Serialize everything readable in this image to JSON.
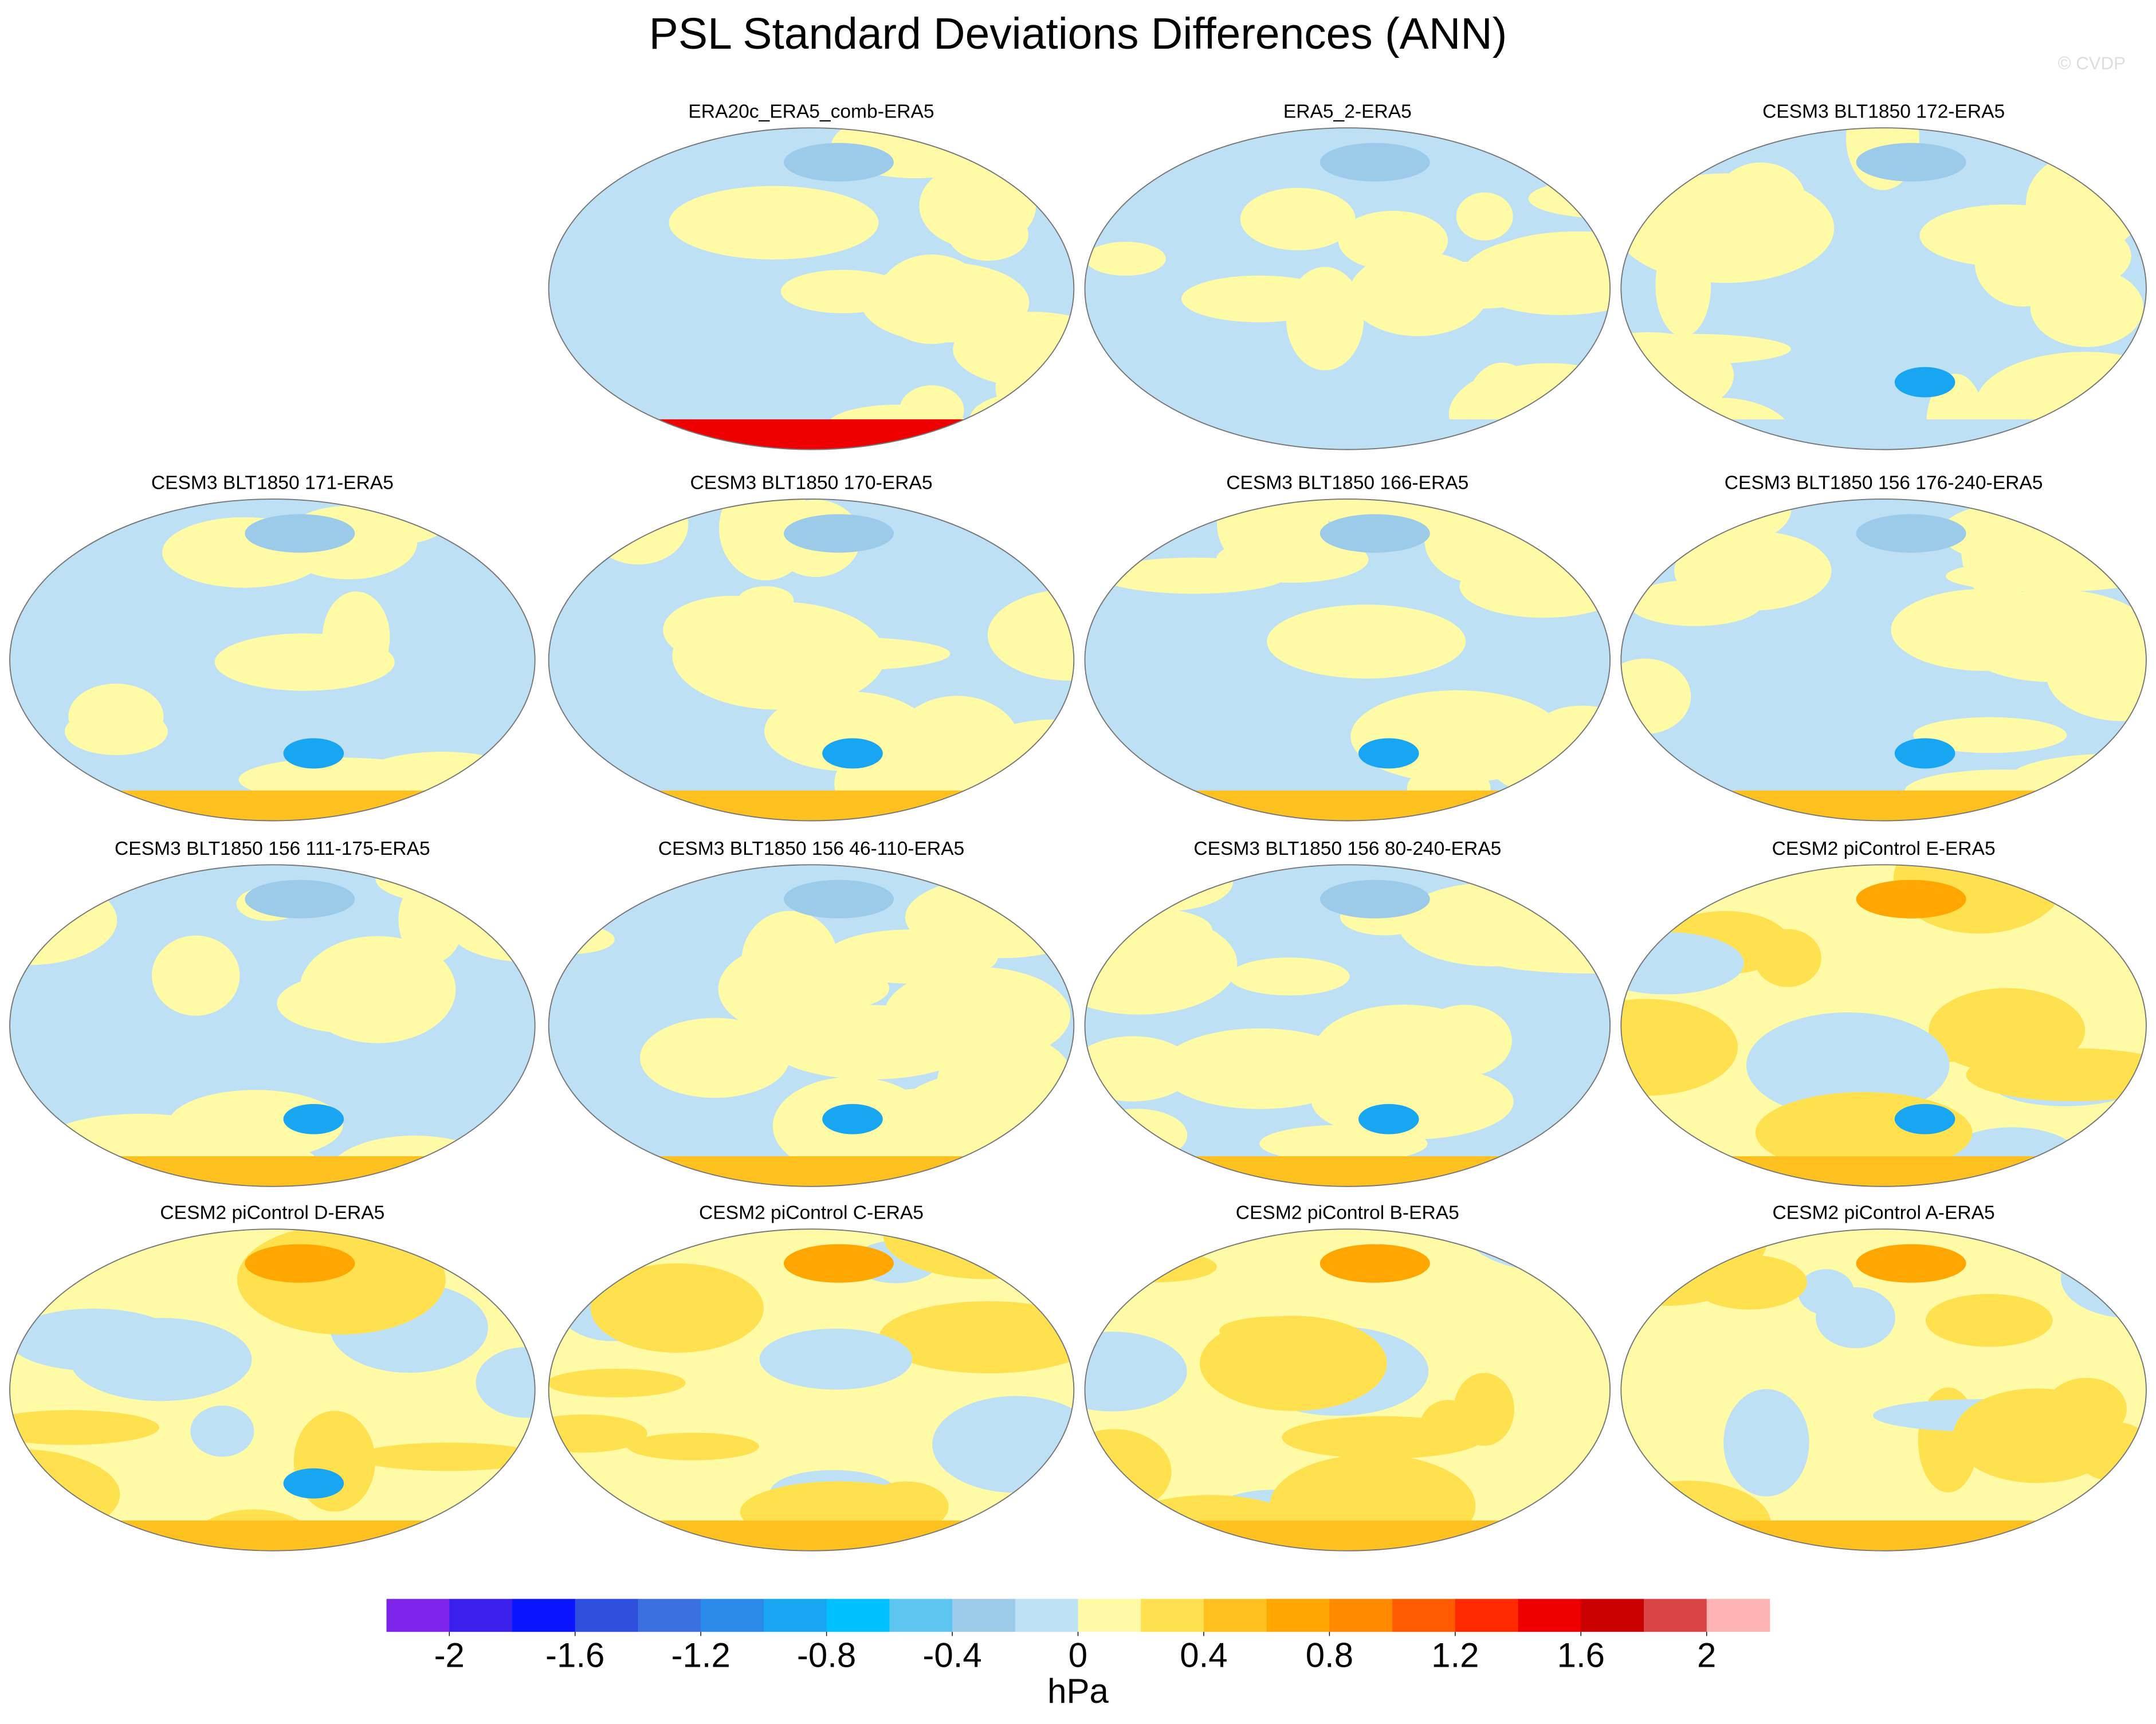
{
  "title": "PSL Standard Deviations Differences (ANN)",
  "credit": "© CVDP",
  "panels": [
    {
      "title": "ERA20c_ERA5_comb-ERA5"
    },
    {
      "title": "ERA5_2-ERA5"
    },
    {
      "title": "CESM3 BLT1850 172-ERA5"
    },
    {
      "title": "CESM3 BLT1850 171-ERA5"
    },
    {
      "title": "CESM3 BLT1850 170-ERA5"
    },
    {
      "title": "CESM3 BLT1850 166-ERA5"
    },
    {
      "title": "CESM3 BLT1850 156 176-240-ERA5"
    },
    {
      "title": "CESM3 BLT1850 156 111-175-ERA5"
    },
    {
      "title": "CESM3 BLT1850 156 46-110-ERA5"
    },
    {
      "title": "CESM3 BLT1850 156 80-240-ERA5"
    },
    {
      "title": "CESM2 piControl E-ERA5"
    },
    {
      "title": "CESM2 piControl D-ERA5"
    },
    {
      "title": "CESM2 piControl C-ERA5"
    },
    {
      "title": "CESM2 piControl B-ERA5"
    },
    {
      "title": "CESM2 piControl A-ERA5"
    }
  ],
  "colorbar": {
    "label": "hPa",
    "range": [
      -2.2,
      2.2
    ],
    "colors": [
      "#7d22e8",
      "#3a20ea",
      "#0a14ff",
      "#2e4fde",
      "#3a6fe0",
      "#2a8aea",
      "#18a6f2",
      "#00c0ff",
      "#5cc5f0",
      "#9ccbea",
      "#bde0f5",
      "#fffaa5",
      "#ffe04f",
      "#ffc11f",
      "#ffa600",
      "#ff8a00",
      "#ff5a00",
      "#ff2a00",
      "#ee0000",
      "#c80000",
      "#d94444",
      "#ffb4b4"
    ],
    "ticks": [
      -2,
      -1.6,
      -1.2,
      -0.8,
      -0.4,
      0,
      0.4,
      0.8,
      1.2,
      1.6,
      2
    ]
  }
}
